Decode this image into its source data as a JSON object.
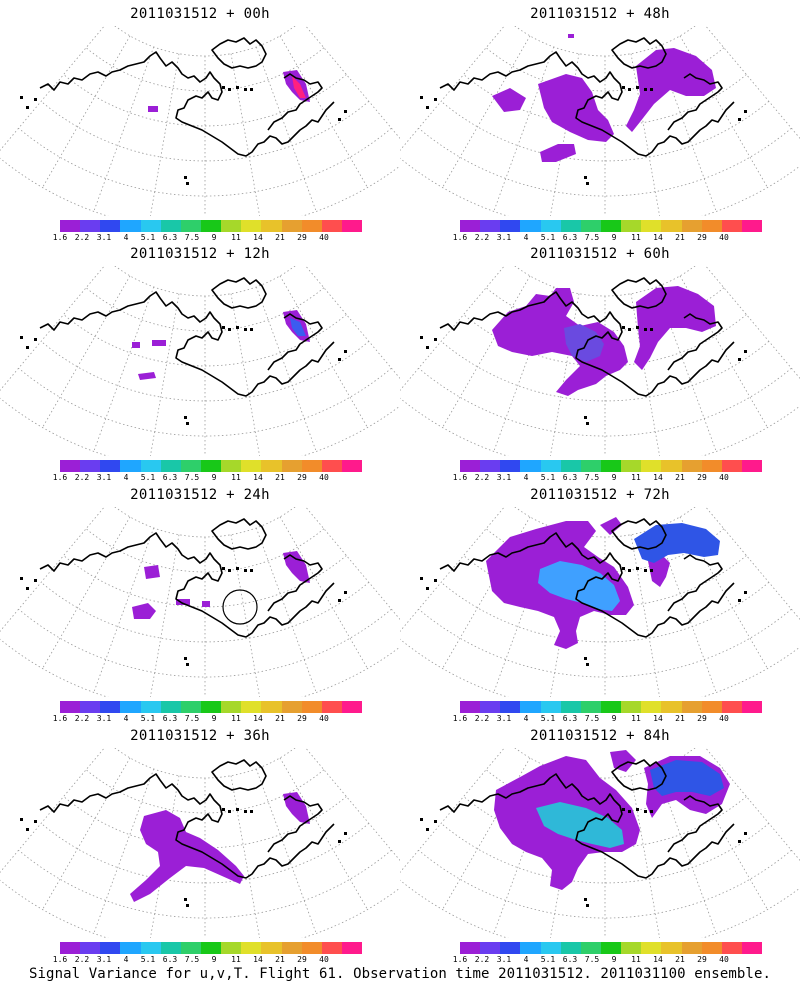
{
  "panels": [
    {
      "title": "2011031512 + 00h",
      "blobs": [
        {
          "c": "#9b1fd6",
          "shape": "ne_small"
        },
        {
          "c": "#ff2080",
          "shape": "ne_red"
        },
        {
          "c": "#9b1fd6",
          "shape": "dot_w"
        }
      ]
    },
    {
      "title": "2011031512 + 48h",
      "blobs": [
        {
          "c": "#9b1fd6",
          "shape": "mid_48"
        },
        {
          "c": "#9b1fd6",
          "shape": "ne_48"
        }
      ]
    },
    {
      "title": "2011031512 + 12h",
      "blobs": [
        {
          "c": "#9b1fd6",
          "shape": "ne_small"
        },
        {
          "c": "#3b5cf0",
          "shape": "ne_blue"
        },
        {
          "c": "#9b1fd6",
          "shape": "dots_12"
        }
      ]
    },
    {
      "title": "2011031512 + 60h",
      "blobs": [
        {
          "c": "#9b1fd6",
          "shape": "mid_60"
        },
        {
          "c": "#6a4ae0",
          "shape": "core_60"
        },
        {
          "c": "#9b1fd6",
          "shape": "ne_60"
        }
      ]
    },
    {
      "title": "2011031512 + 24h",
      "blobs": [
        {
          "c": "#9b1fd6",
          "shape": "ne_small"
        },
        {
          "c": "#9b1fd6",
          "shape": "dots_24"
        },
        {
          "c": "none",
          "shape": "circle_24"
        }
      ]
    },
    {
      "title": "2011031512 + 72h",
      "blobs": [
        {
          "c": "#9b1fd6",
          "shape": "mid_72"
        },
        {
          "c": "#3fa0ff",
          "shape": "core_72"
        },
        {
          "c": "#2f55e6",
          "shape": "ne_72"
        }
      ]
    },
    {
      "title": "2011031512 + 36h",
      "blobs": [
        {
          "c": "#9b1fd6",
          "shape": "mid_36"
        },
        {
          "c": "#9b1fd6",
          "shape": "ne_small"
        }
      ]
    },
    {
      "title": "2011031512 + 84h",
      "blobs": [
        {
          "c": "#9b1fd6",
          "shape": "mid_84"
        },
        {
          "c": "#2fb8d8",
          "shape": "core_84"
        },
        {
          "c": "#2f55e6",
          "shape": "ne_84"
        }
      ]
    }
  ],
  "colorbar": {
    "colors": [
      "#9b1fd6",
      "#6a3df0",
      "#3048f0",
      "#1fa6ff",
      "#29c8f0",
      "#19c7a8",
      "#2ecf6a",
      "#18c818",
      "#a6d82a",
      "#e0e02a",
      "#e8c22a",
      "#e6a030",
      "#f28c2a",
      "#ff4e4e",
      "#ff1a8c"
    ],
    "labels": [
      "1.6",
      "2.2",
      "3.1",
      "4",
      "5.1",
      "6.3",
      "7.5",
      "9",
      "11",
      "14",
      "21",
      "29",
      "40"
    ]
  },
  "caption": "Signal Variance for u,v,T. Flight 61. Observation time 2011031512. 2011031100 ensemble."
}
